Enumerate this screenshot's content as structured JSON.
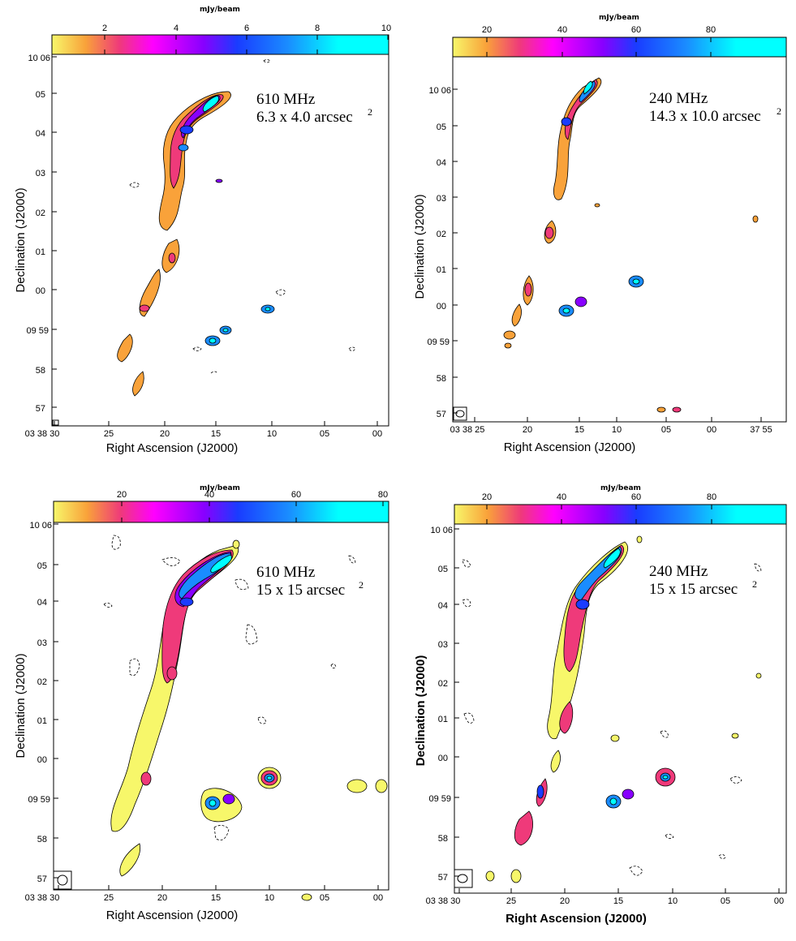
{
  "chart_data": [
    {
      "type": "heatmap",
      "title": "",
      "colorbar": {
        "label": "mJy/beam",
        "ticks": [
          "2",
          "4",
          "6",
          "8",
          "10"
        ],
        "range": [
          0,
          10
        ],
        "colormap": [
          "#f7f76a",
          "#f9a23a",
          "#ef3a7a",
          "#ff00ff",
          "#8800ff",
          "#1a3cff",
          "#1a8cff",
          "#00ffff"
        ]
      },
      "xlabel": "Right Ascension (J2000)",
      "ylabel": "Declination (J2000)",
      "x_ticks": [
        "03 38 30",
        "25",
        "20",
        "15",
        "10",
        "05",
        "00"
      ],
      "y_ticks": [
        "10 06",
        "05",
        "04",
        "03",
        "02",
        "01",
        "00",
        "09 59",
        "58",
        "57"
      ],
      "annotation": {
        "freq": "610 MHz",
        "beam": "6.3 x 4.0 arcsec",
        "sup": "2"
      }
    },
    {
      "type": "heatmap",
      "title": "",
      "colorbar": {
        "label": "mJy/beam",
        "ticks": [
          "20",
          "40",
          "60",
          "80"
        ],
        "range": [
          10,
          95
        ],
        "colormap": [
          "#f7f76a",
          "#f9a23a",
          "#ef3a7a",
          "#ff00ff",
          "#8800ff",
          "#1a3cff",
          "#1a8cff",
          "#00ffff"
        ]
      },
      "xlabel": "Right Ascension (J2000)",
      "ylabel": "Declination (J2000)",
      "x_ticks": [
        "03 38 25",
        "20",
        "15",
        "10",
        "05",
        "00",
        "37 55"
      ],
      "y_ticks": [
        "10 06",
        "05",
        "04",
        "03",
        "02",
        "01",
        "00",
        "09 59",
        "58",
        "57"
      ],
      "annotation": {
        "freq": "240 MHz",
        "beam": "14.3 x 10.0 arcsec",
        "sup": "2"
      }
    },
    {
      "type": "heatmap",
      "title": "",
      "colorbar": {
        "label": "mJy/beam",
        "ticks": [
          "20",
          "40",
          "60",
          "80"
        ],
        "range": [
          8,
          82
        ],
        "colormap": [
          "#f7f76a",
          "#f9a23a",
          "#ef3a7a",
          "#ff00ff",
          "#8800ff",
          "#1a3cff",
          "#1a8cff",
          "#00ffff"
        ]
      },
      "xlabel": "Right Ascension (J2000)",
      "ylabel": "Declination (J2000)",
      "x_ticks": [
        "03 38 30",
        "25",
        "20",
        "15",
        "10",
        "05",
        "00"
      ],
      "y_ticks": [
        "10 06",
        "05",
        "04",
        "03",
        "02",
        "01",
        "00",
        "09 59",
        "58",
        "57"
      ],
      "annotation": {
        "freq": "610 MHz",
        "beam": "15 x 15 arcsec",
        "sup": "2"
      }
    },
    {
      "type": "heatmap",
      "title": "",
      "colorbar": {
        "label": "mJy/beam",
        "ticks": [
          "20",
          "40",
          "60",
          "80"
        ],
        "range": [
          10,
          95
        ],
        "colormap": [
          "#f7f76a",
          "#f9a23a",
          "#ef3a7a",
          "#ff00ff",
          "#8800ff",
          "#1a3cff",
          "#1a8cff",
          "#00ffff"
        ]
      },
      "xlabel": "Right Ascension (J2000)",
      "ylabel": "Declination (J2000)",
      "x_ticks": [
        "03 38 30",
        "25",
        "20",
        "15",
        "10",
        "05",
        "00"
      ],
      "y_ticks": [
        "10 06",
        "05",
        "04",
        "03",
        "02",
        "01",
        "00",
        "09 59",
        "58",
        "57"
      ],
      "annotation": {
        "freq": "240 MHz",
        "beam": "15 x 15 arcsec",
        "sup": "2"
      }
    }
  ]
}
